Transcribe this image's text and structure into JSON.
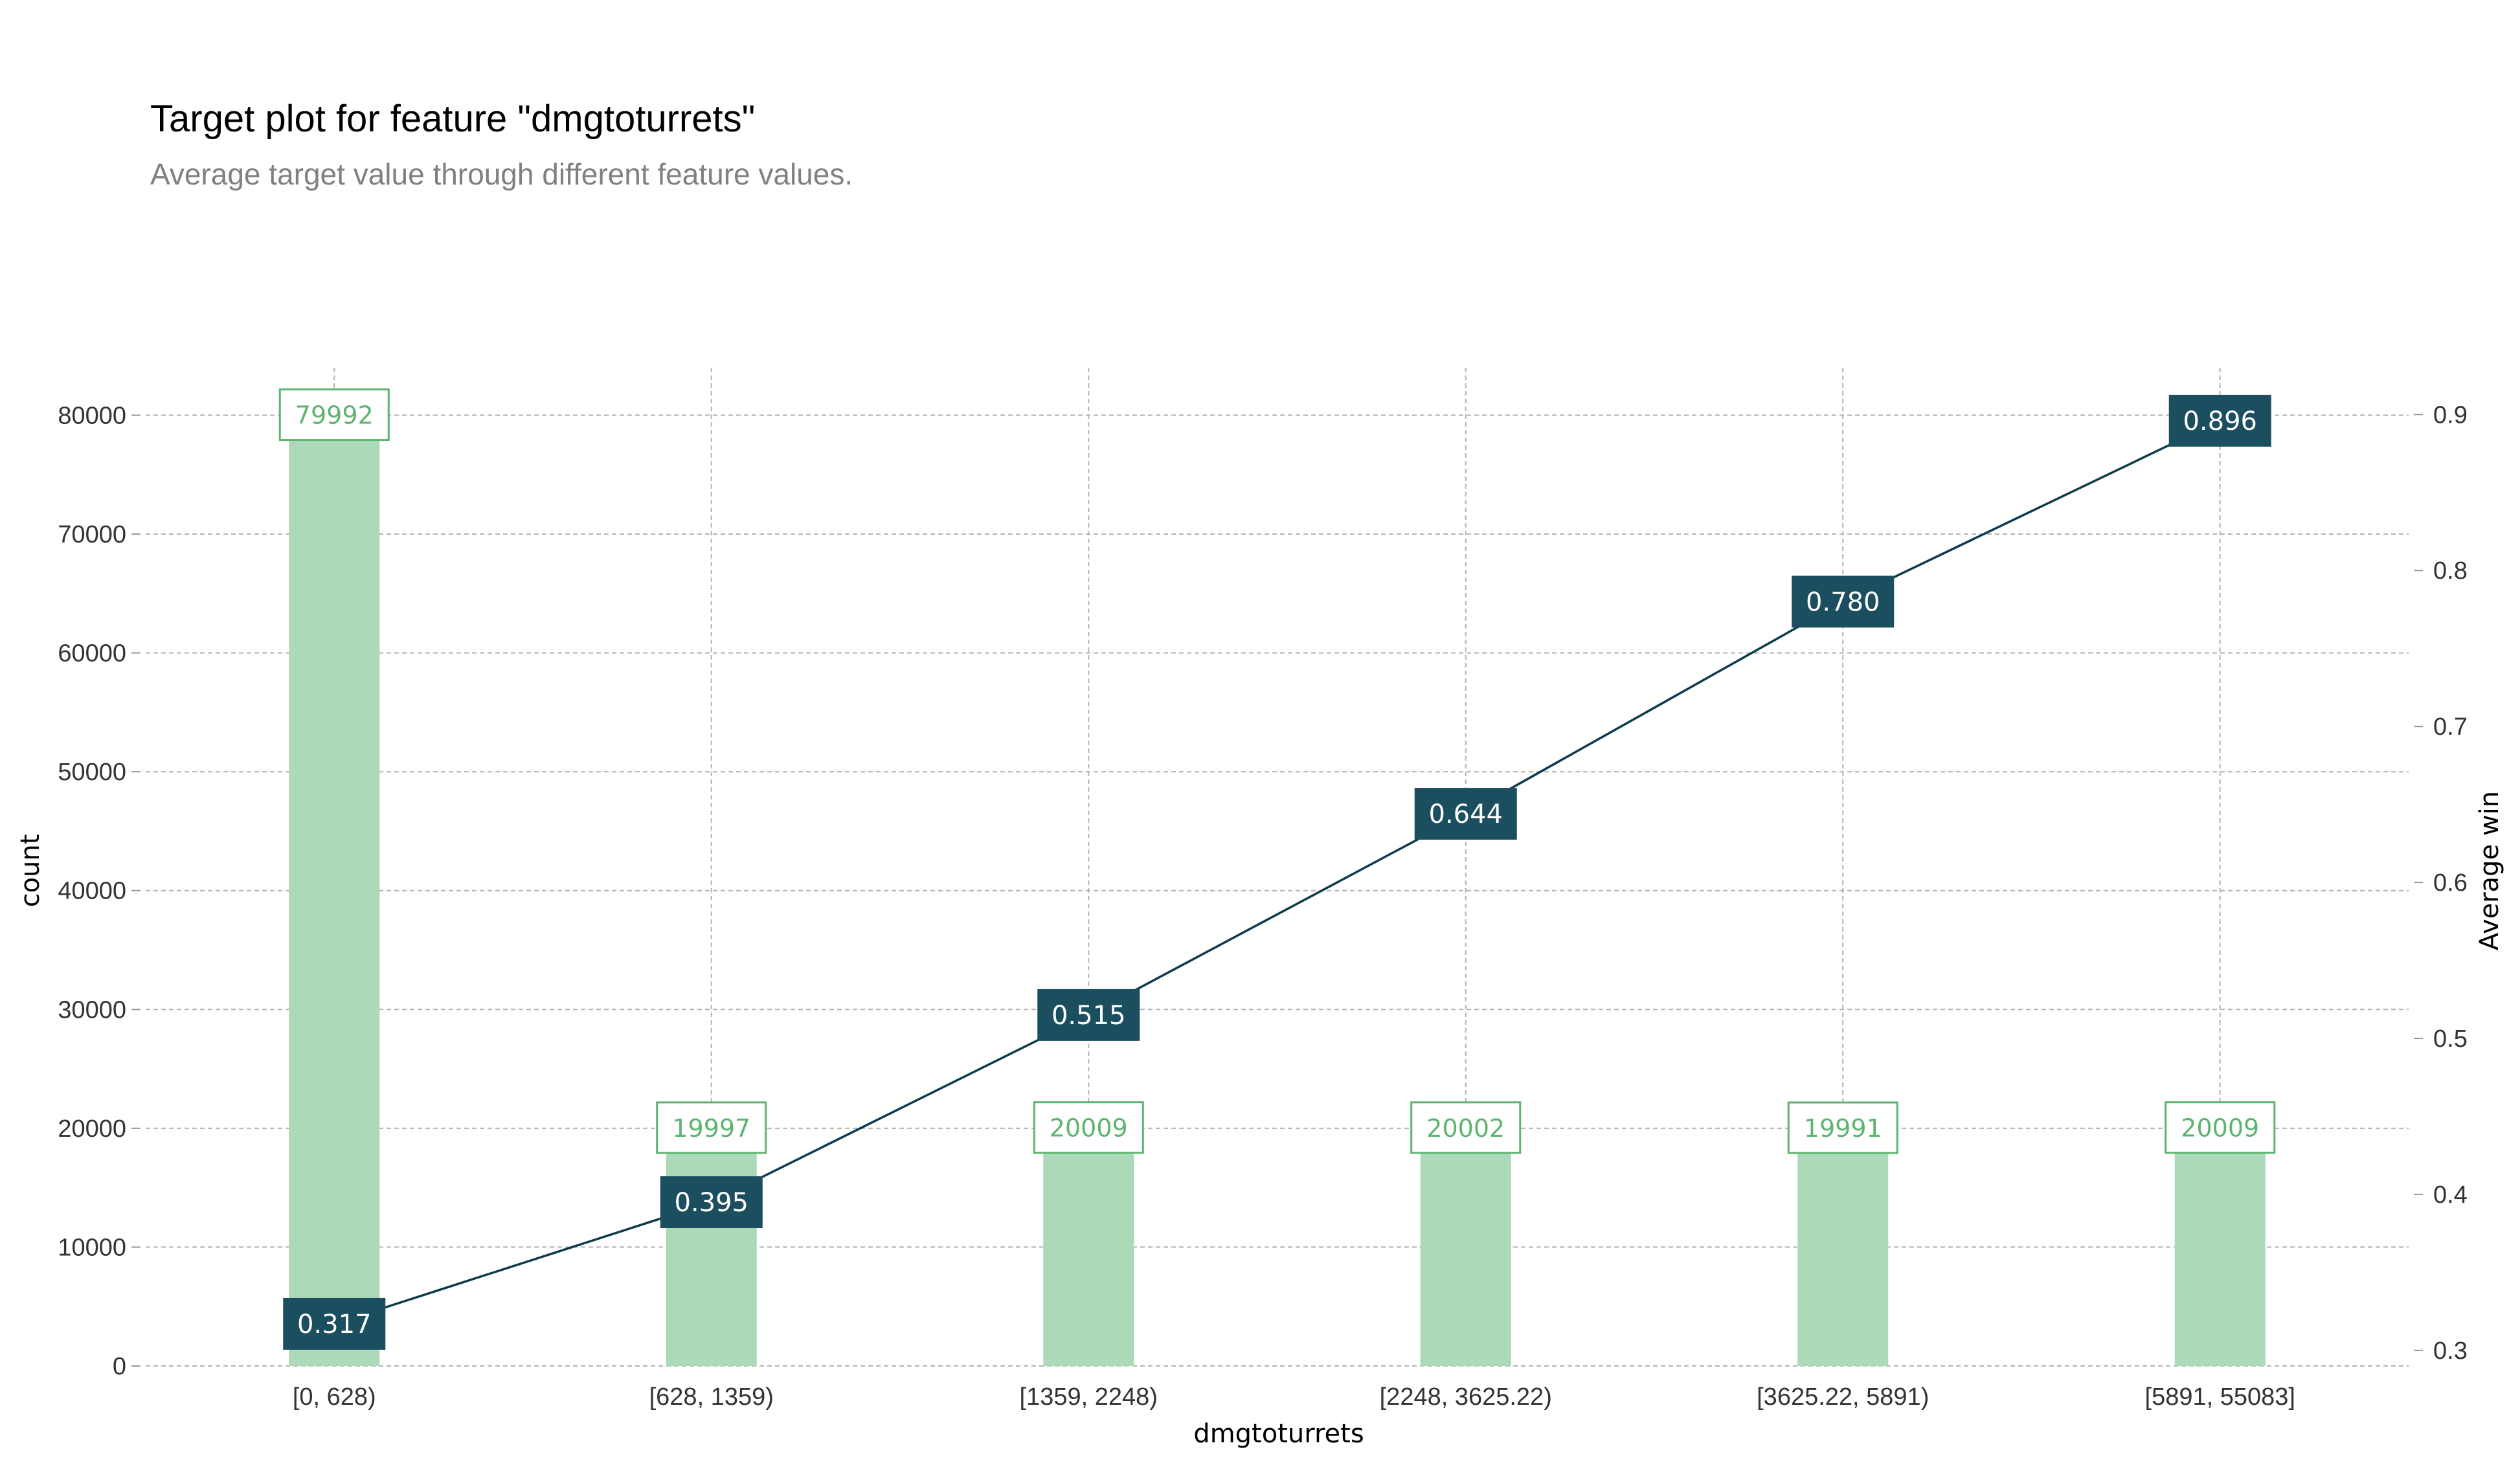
{
  "title": "Target plot for feature \"dmgtoturrets\"",
  "subtitle": "Average target value through different feature values.",
  "chart_data": {
    "type": "bar",
    "categories": [
      "[0, 628)",
      "[628, 1359)",
      "[1359, 2248)",
      "[2248, 3625.22)",
      "[3625.22, 5891)",
      "[5891, 55083]"
    ],
    "series": [
      {
        "name": "count",
        "type": "bar",
        "axis": "left",
        "values": [
          79992,
          19997,
          20009,
          20002,
          19991,
          20009
        ]
      },
      {
        "name": "Average win",
        "type": "line",
        "axis": "right",
        "values": [
          0.317,
          0.395,
          0.515,
          0.644,
          0.78,
          0.896
        ]
      }
    ],
    "count_labels": [
      "79992",
      "19997",
      "20009",
      "20002",
      "19991",
      "20009"
    ],
    "avg_labels": [
      "0.317",
      "0.395",
      "0.515",
      "0.644",
      "0.780",
      "0.896"
    ],
    "xlabel": "dmgtoturrets",
    "ylabel": "count",
    "y2label": "Average win",
    "ylim": [
      0,
      84000
    ],
    "y2lim": [
      0.29,
      0.93
    ],
    "yticks": [
      0,
      10000,
      20000,
      30000,
      40000,
      50000,
      60000,
      70000,
      80000
    ],
    "y2ticks": [
      "0.3",
      "0.4",
      "0.5",
      "0.6",
      "0.7",
      "0.8",
      "0.9"
    ],
    "grid": true,
    "colors": {
      "bar": "#acd9b7",
      "count_label": "#5db46f",
      "line": "#0d3b4d",
      "avg_box": "#1b4e5f",
      "grid": "#b3b3b3"
    }
  }
}
